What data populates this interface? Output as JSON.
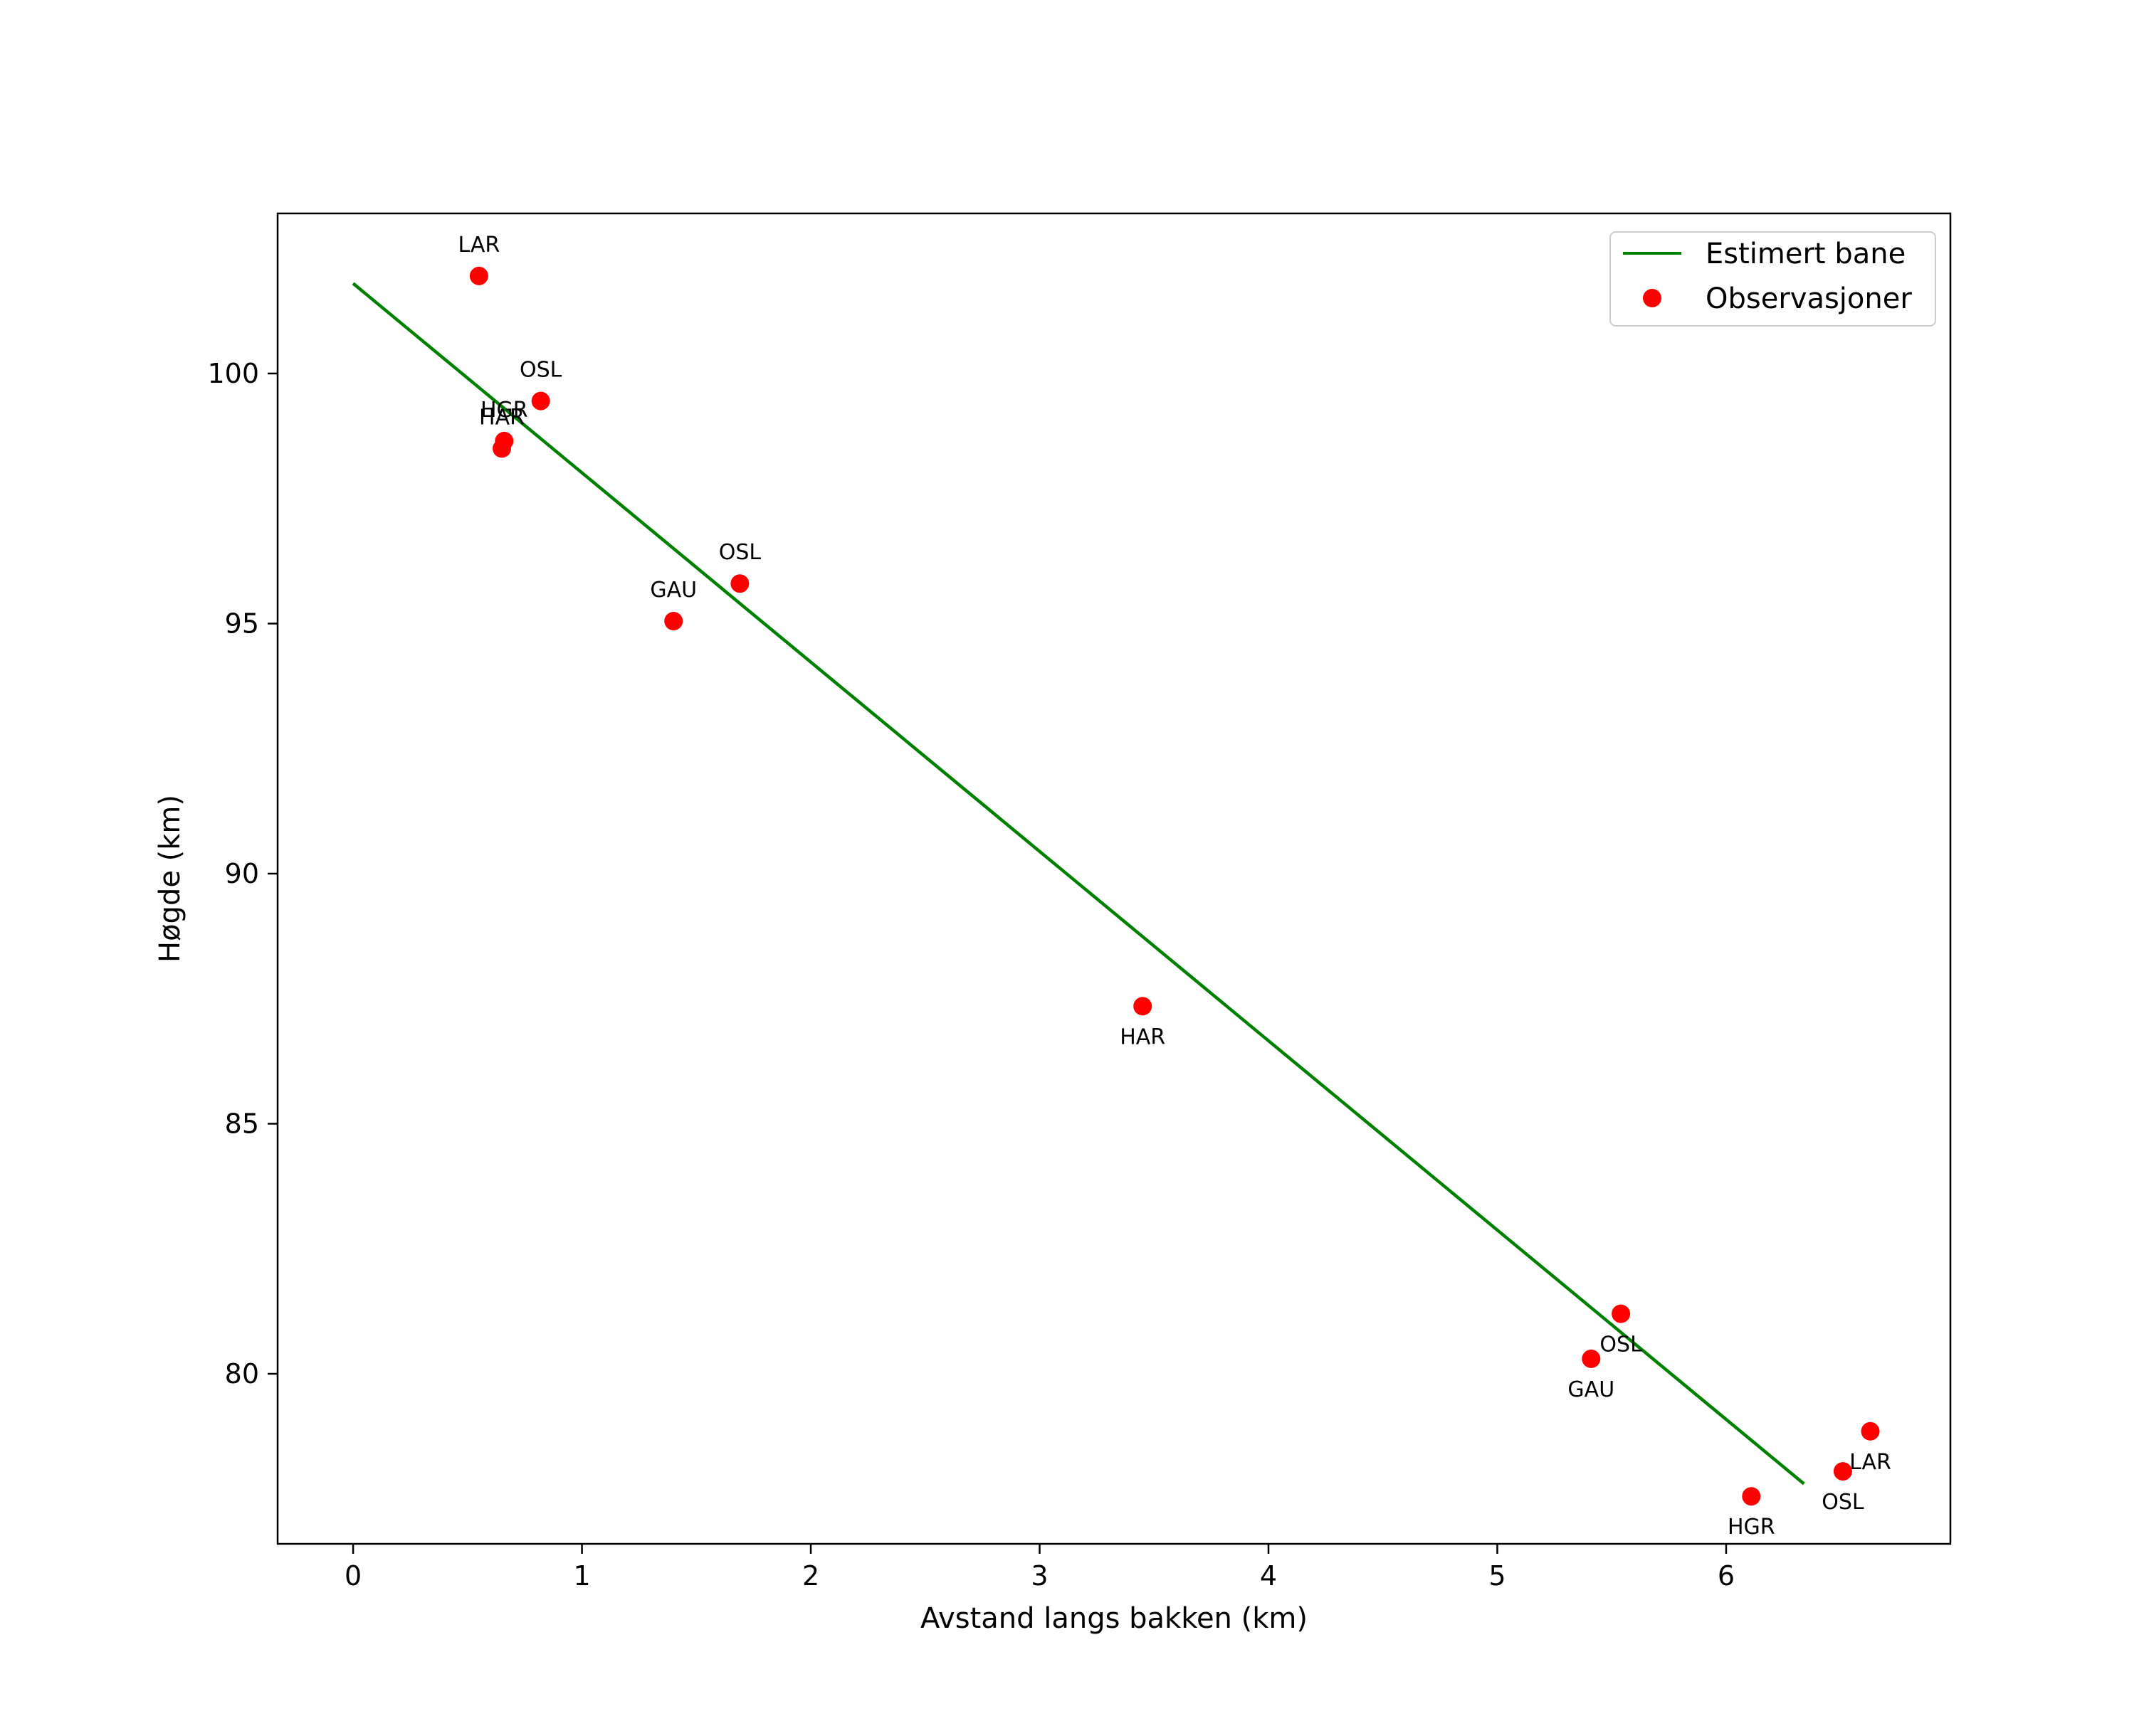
{
  "chart_data": {
    "type": "scatter",
    "title": "",
    "xlabel": "Avstand langs bakken (km)",
    "ylabel": "Høgde (km)",
    "xlim": [
      -0.33,
      6.98
    ],
    "ylim": [
      76.6,
      103.2
    ],
    "xticks": [
      0,
      1,
      2,
      3,
      4,
      5,
      6
    ],
    "yticks": [
      80,
      85,
      90,
      95,
      100
    ],
    "grid": false,
    "legend_position": "top-right",
    "series": [
      {
        "name": "Estimert bane",
        "type": "line",
        "color": "#008000",
        "points": [
          [
            0.0,
            101.8
          ],
          [
            6.34,
            77.8
          ]
        ]
      },
      {
        "name": "Observasjoner",
        "type": "scatter",
        "color": "#ff0000",
        "points": [
          {
            "x": 0.55,
            "y": 101.95,
            "label": "LAR",
            "label_pos": "above"
          },
          {
            "x": 0.82,
            "y": 99.45,
            "label": "OSL",
            "label_pos": "above"
          },
          {
            "x": 0.66,
            "y": 98.65,
            "label": "HGR",
            "label_pos": "above"
          },
          {
            "x": 0.65,
            "y": 98.5,
            "label": "HAR",
            "label_pos": "above"
          },
          {
            "x": 1.69,
            "y": 95.8,
            "label": "OSL",
            "label_pos": "above"
          },
          {
            "x": 1.4,
            "y": 95.05,
            "label": "GAU",
            "label_pos": "above"
          },
          {
            "x": 3.45,
            "y": 87.35,
            "label": "HAR",
            "label_pos": "below"
          },
          {
            "x": 5.54,
            "y": 81.2,
            "label": "OSL",
            "label_pos": "below"
          },
          {
            "x": 5.41,
            "y": 80.3,
            "label": "GAU",
            "label_pos": "below"
          },
          {
            "x": 6.11,
            "y": 77.55,
            "label": "HGR",
            "label_pos": "below"
          },
          {
            "x": 6.51,
            "y": 78.05,
            "label": "OSL",
            "label_pos": "below"
          },
          {
            "x": 6.63,
            "y": 78.85,
            "label": "LAR",
            "label_pos": "below"
          }
        ]
      }
    ]
  }
}
